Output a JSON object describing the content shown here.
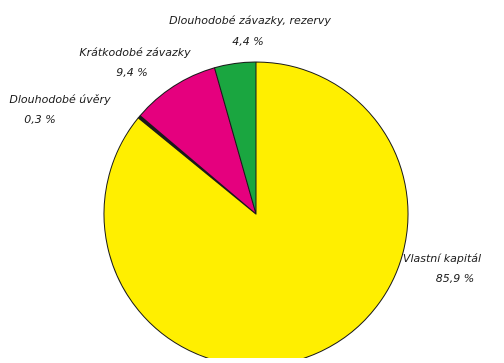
{
  "chart_data": {
    "type": "pie",
    "title": "",
    "unit": "%",
    "start_angle_deg": 0,
    "direction": "clockwise",
    "slices": [
      {
        "label": "Vlastní kapitál",
        "value_text": "85,9 %",
        "value": 85.9,
        "color": "#ffef00"
      },
      {
        "label": "Dlouhodobé úvěry",
        "value_text": "0,3 %",
        "value": 0.3,
        "color": "#1a1a1a"
      },
      {
        "label": "Krátkodobé závazky",
        "value_text": "9,4 %",
        "value": 9.4,
        "color": "#e5007e"
      },
      {
        "label": "Dlouhodobé závazky, rezervy",
        "value_text": "4,4 %",
        "value": 4.4,
        "color": "#1aa640"
      }
    ]
  }
}
